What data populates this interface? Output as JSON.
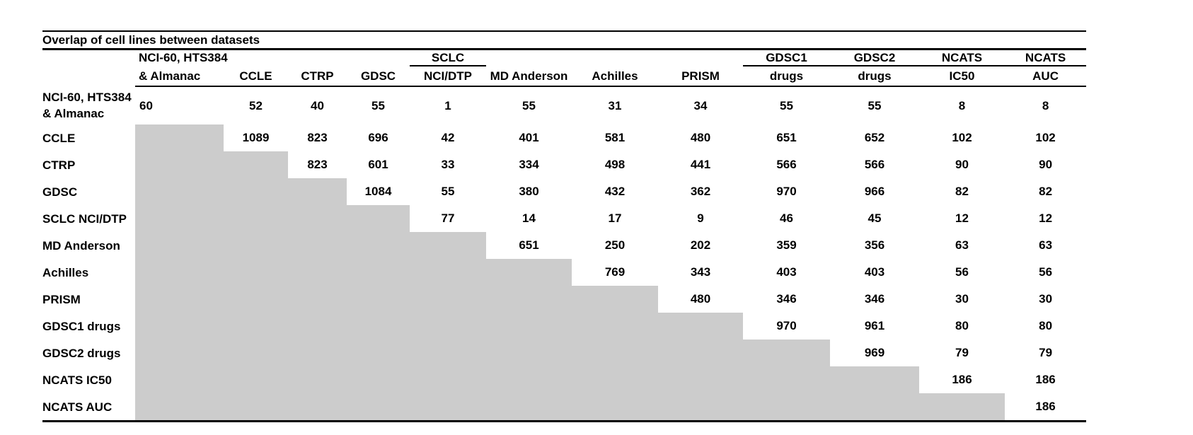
{
  "title": "Overlap of cell lines between datasets",
  "colors": {
    "shade": "#cccccc",
    "rule": "#000000",
    "background": "#ffffff",
    "text": "#000000"
  },
  "columns": [
    {
      "key": "nci60-hts384-almanac",
      "header_lines": [
        "NCI-60, HTS384",
        "& Almanac"
      ],
      "align": "left",
      "underline": false
    },
    {
      "key": "ccle",
      "header_lines": [
        "",
        "CCLE"
      ],
      "align": "center",
      "underline": false
    },
    {
      "key": "ctrp",
      "header_lines": [
        "",
        "CTRP"
      ],
      "align": "center",
      "underline": false
    },
    {
      "key": "gdsc",
      "header_lines": [
        "",
        "GDSC"
      ],
      "align": "center",
      "underline": false
    },
    {
      "key": "sclc-nci-dtp",
      "header_lines": [
        "SCLC",
        "NCI/DTP"
      ],
      "align": "center",
      "underline": true
    },
    {
      "key": "md-anderson",
      "header_lines": [
        "",
        "MD Anderson"
      ],
      "align": "center",
      "underline": false
    },
    {
      "key": "achilles",
      "header_lines": [
        "",
        "Achilles"
      ],
      "align": "center",
      "underline": false
    },
    {
      "key": "prism",
      "header_lines": [
        "",
        "PRISM"
      ],
      "align": "center",
      "underline": false
    },
    {
      "key": "gdsc1-drugs",
      "header_lines": [
        "GDSC1",
        "drugs"
      ],
      "align": "center",
      "underline": true
    },
    {
      "key": "gdsc2-drugs",
      "header_lines": [
        "GDSC2",
        "drugs"
      ],
      "align": "center",
      "underline": true
    },
    {
      "key": "ncats-ic50",
      "header_lines": [
        "NCATS",
        "IC50"
      ],
      "align": "center",
      "underline": true
    },
    {
      "key": "ncats-auc",
      "header_lines": [
        "NCATS",
        "AUC"
      ],
      "align": "center",
      "underline": true
    }
  ],
  "rows": [
    {
      "key": "nci60-hts384-almanac",
      "label_lines": [
        "NCI-60, HTS384",
        "& Almanac"
      ],
      "values": [
        "60",
        "52",
        "40",
        "55",
        "1",
        "55",
        "31",
        "34",
        "55",
        "55",
        "8",
        "8"
      ]
    },
    {
      "key": "ccle",
      "label_lines": [
        "CCLE"
      ],
      "values": [
        null,
        "1089",
        "823",
        "696",
        "42",
        "401",
        "581",
        "480",
        "651",
        "652",
        "102",
        "102"
      ]
    },
    {
      "key": "ctrp",
      "label_lines": [
        "CTRP"
      ],
      "values": [
        null,
        null,
        "823",
        "601",
        "33",
        "334",
        "498",
        "441",
        "566",
        "566",
        "90",
        "90"
      ]
    },
    {
      "key": "gdsc",
      "label_lines": [
        "GDSC"
      ],
      "values": [
        null,
        null,
        null,
        "1084",
        "55",
        "380",
        "432",
        "362",
        "970",
        "966",
        "82",
        "82"
      ]
    },
    {
      "key": "sclc-nci-dtp",
      "label_lines": [
        "SCLC NCI/DTP"
      ],
      "values": [
        null,
        null,
        null,
        null,
        "77",
        "14",
        "17",
        "9",
        "46",
        "45",
        "12",
        "12"
      ]
    },
    {
      "key": "md-anderson",
      "label_lines": [
        "MD Anderson"
      ],
      "values": [
        null,
        null,
        null,
        null,
        null,
        "651",
        "250",
        "202",
        "359",
        "356",
        "63",
        "63"
      ]
    },
    {
      "key": "achilles",
      "label_lines": [
        "Achilles"
      ],
      "values": [
        null,
        null,
        null,
        null,
        null,
        null,
        "769",
        "343",
        "403",
        "403",
        "56",
        "56"
      ]
    },
    {
      "key": "prism",
      "label_lines": [
        "PRISM"
      ],
      "values": [
        null,
        null,
        null,
        null,
        null,
        null,
        null,
        "480",
        "346",
        "346",
        "30",
        "30"
      ]
    },
    {
      "key": "gdsc1-drugs",
      "label_lines": [
        "GDSC1 drugs"
      ],
      "values": [
        null,
        null,
        null,
        null,
        null,
        null,
        null,
        null,
        "970",
        "961",
        "80",
        "80"
      ]
    },
    {
      "key": "gdsc2-drugs",
      "label_lines": [
        "GDSC2 drugs"
      ],
      "values": [
        null,
        null,
        null,
        null,
        null,
        null,
        null,
        null,
        null,
        "969",
        "79",
        "79"
      ]
    },
    {
      "key": "ncats-ic50",
      "label_lines": [
        "NCATS IC50"
      ],
      "values": [
        null,
        null,
        null,
        null,
        null,
        null,
        null,
        null,
        null,
        null,
        "186",
        "186"
      ]
    },
    {
      "key": "ncats-auc",
      "label_lines": [
        "NCATS AUC"
      ],
      "values": [
        null,
        null,
        null,
        null,
        null,
        null,
        null,
        null,
        null,
        null,
        null,
        "186"
      ]
    }
  ]
}
